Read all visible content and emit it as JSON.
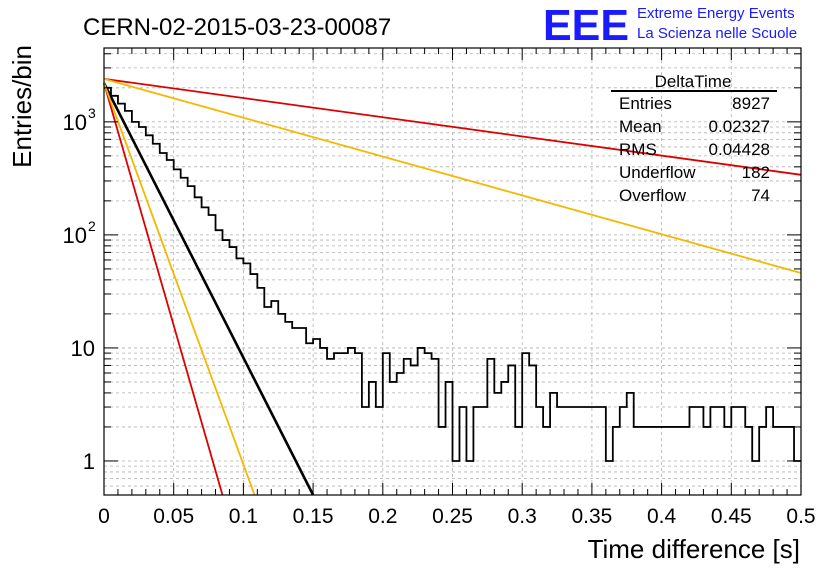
{
  "header": {
    "run_title": "CERN-02-2015-03-23-00087",
    "logo_text": "EEE",
    "logo_line1": "Extreme Energy Events",
    "logo_line2": "La Scienza nelle Scuole"
  },
  "stats_box": {
    "title": "DeltaTime",
    "rows": [
      {
        "label": "Entries",
        "value": "8927"
      },
      {
        "label": "Mean",
        "value": "0.02327"
      },
      {
        "label": "RMS",
        "value": "0.04428"
      },
      {
        "label": "Underflow",
        "value": "182"
      },
      {
        "label": "Overflow",
        "value": "74"
      }
    ]
  },
  "colors": {
    "histogram": "#000000",
    "fit_black": "#000000",
    "fit_red": "#dd0000",
    "fit_orange": "#f5b800",
    "grid": "#b0b0b0",
    "logo": "#1a1aff"
  },
  "chart_data": {
    "type": "histogram",
    "xlabel": "Time difference [s]",
    "ylabel": "Entries/bin",
    "xlim": [
      0,
      0.5
    ],
    "ylim": [
      0.5,
      4500
    ],
    "yscale": "log",
    "grid": true,
    "x_ticks": [
      "0",
      "0.05",
      "0.1",
      "0.15",
      "0.2",
      "0.25",
      "0.3",
      "0.35",
      "0.4",
      "0.45",
      "0.5"
    ],
    "y_ticks": [
      {
        "value": 1,
        "label": "1",
        "exp": ""
      },
      {
        "value": 10,
        "label": "10",
        "exp": ""
      },
      {
        "value": 100,
        "label": "10",
        "exp": "2"
      },
      {
        "value": 1000,
        "label": "10",
        "exp": "3"
      }
    ],
    "bin_width": 0.005,
    "bin_start": 0,
    "counts": [
      2000,
      1700,
      1450,
      1250,
      1000,
      900,
      760,
      640,
      530,
      460,
      380,
      320,
      270,
      215,
      175,
      150,
      110,
      90,
      78,
      62,
      56,
      45,
      34,
      23,
      26,
      20,
      17,
      15,
      15,
      11,
      12,
      10,
      8,
      9,
      9,
      10,
      9,
      3,
      5,
      3,
      9,
      5,
      6,
      8,
      7,
      10,
      9,
      8,
      2,
      5,
      1,
      3,
      1,
      3,
      3,
      8,
      4,
      5,
      7,
      2,
      9,
      7,
      3,
      2,
      4,
      3,
      3,
      3,
      3,
      3,
      3,
      3,
      1,
      2,
      3,
      4,
      2,
      2,
      2,
      2,
      2,
      2,
      2,
      2,
      3,
      3,
      2,
      3,
      3,
      2,
      3,
      3,
      2,
      1,
      2,
      3,
      2,
      2,
      2,
      1
    ],
    "fit_lines": [
      {
        "color": "black",
        "x0": 0,
        "y0": 2200,
        "x1": 0.15,
        "y1": 0.5
      },
      {
        "color": "red",
        "x0": 0,
        "y0": 2200,
        "x1": 0.085,
        "y1": 0.5
      },
      {
        "color": "orange",
        "x0": 0,
        "y0": 2200,
        "x1": 0.108,
        "y1": 0.5
      },
      {
        "color": "red",
        "x0": 0,
        "y0": 2400,
        "x1": 0.5,
        "y1": 340
      },
      {
        "color": "orange",
        "x0": 0,
        "y0": 2400,
        "x1": 0.5,
        "y1": 46
      }
    ]
  }
}
